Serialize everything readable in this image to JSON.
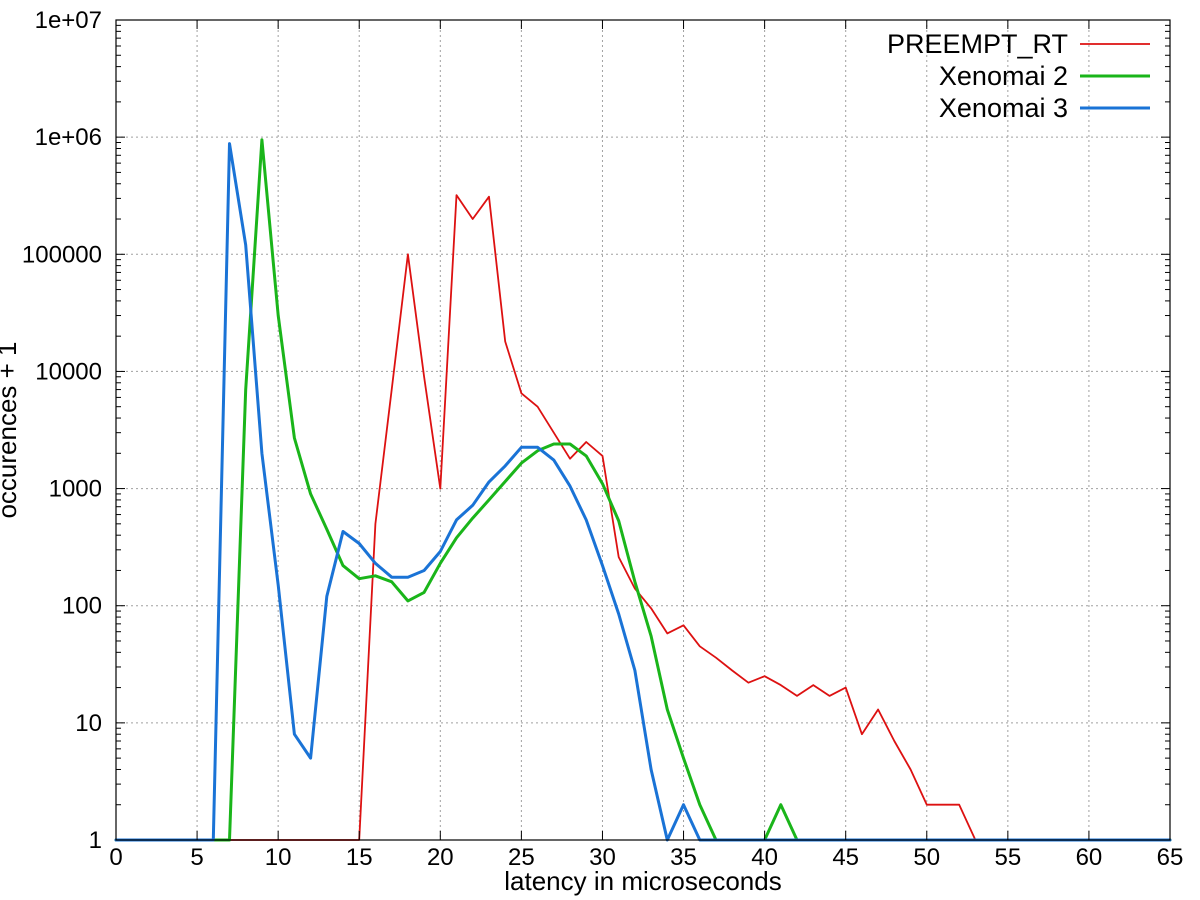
{
  "chart_data": {
    "type": "line",
    "title": "",
    "xlabel": "latency in microseconds",
    "ylabel": "occurences + 1",
    "xlim": [
      0,
      65
    ],
    "ylim": [
      1,
      10000000
    ],
    "yscale": "log",
    "grid": true,
    "legend_position": "top-right",
    "x_ticks": [
      0,
      5,
      10,
      15,
      20,
      25,
      30,
      35,
      40,
      45,
      50,
      55,
      60,
      65
    ],
    "x_tick_labels": [
      "0",
      "5",
      "10",
      "15",
      "20",
      "25",
      "30",
      "35",
      "40",
      "45",
      "50",
      "55",
      "60",
      "65"
    ],
    "y_ticks": [
      1,
      10,
      100,
      1000,
      10000,
      100000,
      1000000,
      10000000
    ],
    "y_tick_labels": [
      "1",
      "10",
      "100",
      "1000",
      "10000",
      "100000",
      "1e+06",
      "1e+07"
    ],
    "series": [
      {
        "name": "PREEMPT_RT",
        "color": "#dd1111",
        "width": 1.8,
        "x": [
          0,
          15,
          16,
          17,
          18,
          19,
          20,
          21,
          22,
          23,
          24,
          25,
          26,
          27,
          28,
          29,
          30,
          31,
          32,
          33,
          34,
          35,
          36,
          37,
          38,
          39,
          40,
          41,
          42,
          43,
          44,
          45,
          46,
          47,
          48,
          49,
          50,
          51,
          52,
          53,
          65
        ],
        "y": [
          1,
          1,
          500,
          7000,
          100000,
          9000,
          1000,
          320000,
          200000,
          310000,
          18000,
          6500,
          5000,
          3000,
          1800,
          2500,
          1900,
          260,
          140,
          95,
          58,
          68,
          45,
          36,
          28,
          22,
          25,
          21,
          17,
          21,
          17,
          20,
          8,
          13,
          7,
          4,
          2,
          2,
          2,
          1,
          1
        ]
      },
      {
        "name": "Xenomai 2",
        "color": "#1ab51a",
        "width": 3,
        "x": [
          0,
          7,
          8,
          9,
          10,
          11,
          12,
          13,
          14,
          15,
          16,
          17,
          18,
          19,
          20,
          21,
          22,
          23,
          24,
          25,
          26,
          27,
          28,
          29,
          30,
          31,
          32,
          33,
          34,
          35,
          36,
          37,
          38,
          39,
          40,
          41,
          42,
          43,
          65
        ],
        "y": [
          1,
          1,
          7000,
          950000,
          30000,
          2700,
          900,
          450,
          220,
          170,
          180,
          160,
          110,
          130,
          230,
          380,
          560,
          800,
          1150,
          1650,
          2100,
          2400,
          2400,
          1900,
          1100,
          530,
          160,
          55,
          13,
          5,
          2,
          1,
          1,
          1,
          1,
          2,
          1,
          1,
          1
        ]
      },
      {
        "name": "Xenomai 3",
        "color": "#1a73d6",
        "width": 3,
        "x": [
          0,
          6,
          7,
          8,
          9,
          10,
          11,
          12,
          13,
          14,
          15,
          16,
          17,
          18,
          19,
          20,
          21,
          22,
          23,
          24,
          25,
          26,
          27,
          28,
          29,
          30,
          31,
          32,
          33,
          34,
          35,
          36,
          37,
          65
        ],
        "y": [
          1,
          1,
          880000,
          120000,
          2000,
          150,
          8,
          5,
          120,
          430,
          340,
          230,
          175,
          175,
          200,
          290,
          540,
          720,
          1140,
          1560,
          2250,
          2250,
          1750,
          1050,
          540,
          220,
          85,
          28,
          4,
          1,
          2,
          1,
          1,
          1
        ]
      }
    ]
  }
}
